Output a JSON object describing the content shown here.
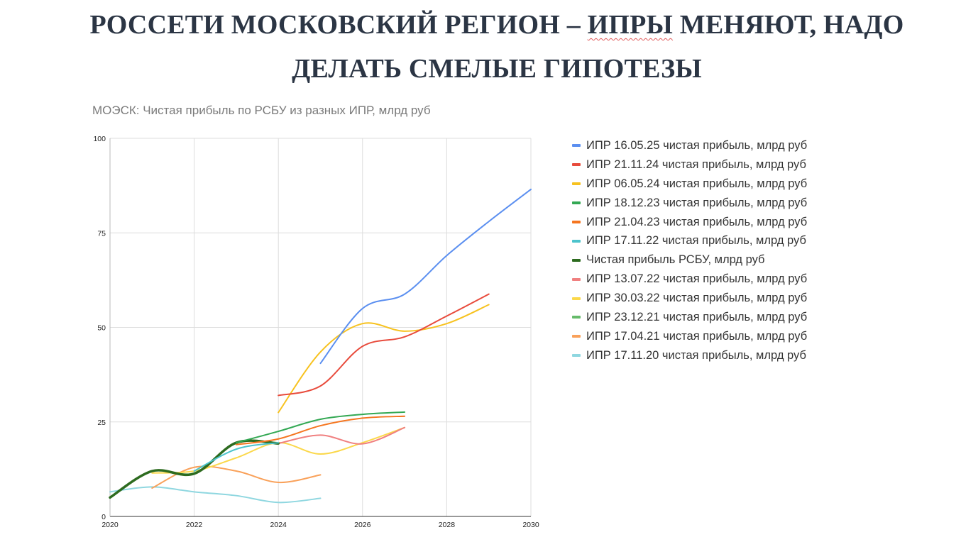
{
  "title_line1_a": "РОССЕТИ МОСКОВСКИЙ РЕГИОН – ",
  "title_line1_b": "ИПРЫ",
  "title_line1_c": " МЕНЯЮТ, НАДО",
  "title_line2": "ДЕЛАТЬ СМЕЛЫЕ ГИПОТЕЗЫ",
  "chart_data": {
    "type": "line",
    "title": "МОЭСК: Чистая прибыль по РСБУ из разных ИПР, млрд руб",
    "xlim": [
      2020,
      2030
    ],
    "ylim": [
      0,
      100
    ],
    "x_ticks": [
      "2020",
      "2022",
      "2024",
      "2026",
      "2028",
      "2030"
    ],
    "y_ticks": [
      "0",
      "25",
      "50",
      "75",
      "100"
    ],
    "grid": true,
    "legend_position": "right",
    "series": [
      {
        "name": "ИПР 16.05.25 чистая прибыль, млрд руб",
        "color": "#5b8ff0",
        "width": 2,
        "x": [
          2025,
          2026,
          2027,
          2028,
          2029,
          2030
        ],
        "y": [
          40.5,
          55,
          58.8,
          69,
          78,
          86.5
        ]
      },
      {
        "name": "ИПР 21.11.24 чистая прибыль, млрд руб",
        "color": "#e84b3c",
        "width": 2,
        "x": [
          2024,
          2025,
          2026,
          2027,
          2028,
          2029
        ],
        "y": [
          32,
          34.5,
          45,
          47.5,
          53,
          58.8
        ]
      },
      {
        "name": "ИПР 06.05.24 чистая прибыль, млрд руб",
        "color": "#f7c21f",
        "width": 2,
        "x": [
          2024,
          2025,
          2026,
          2027,
          2028,
          2029
        ],
        "y": [
          27.5,
          43.5,
          51,
          49,
          51,
          56
        ]
      },
      {
        "name": "ИПР 18.12.23 чистая прибыль, млрд руб",
        "color": "#33a853",
        "width": 2,
        "x": [
          2023,
          2024,
          2025,
          2026,
          2027
        ],
        "y": [
          19.5,
          22.5,
          25.7,
          27,
          27.6
        ]
      },
      {
        "name": "ИПР 21.04.23 чистая прибыль, млрд руб",
        "color": "#f5751f",
        "width": 2,
        "x": [
          2023,
          2024,
          2025,
          2026,
          2027
        ],
        "y": [
          19,
          20.5,
          24,
          26,
          26.5
        ]
      },
      {
        "name": "ИПР 17.11.22 чистая прибыль, млрд руб",
        "color": "#4cc3cc",
        "width": 2,
        "x": [
          2022,
          2023,
          2024
        ],
        "y": [
          12,
          17.8,
          19.5
        ]
      },
      {
        "name": "Чистая прибыль РСБУ, млрд руб",
        "color": "#2d6b1f",
        "width": 3.5,
        "x": [
          2020,
          2021,
          2022,
          2023,
          2024
        ],
        "y": [
          5,
          12,
          11.3,
          19.5,
          19.3
        ]
      },
      {
        "name": "ИПР 13.07.22 чистая прибыль, млрд руб",
        "color": "#f08080",
        "width": 2,
        "x": [
          2024,
          2025,
          2026,
          2027
        ],
        "y": [
          19.3,
          21.5,
          19.2,
          23.5
        ]
      },
      {
        "name": "ИПР 30.03.22 чистая прибыль, млрд руб",
        "color": "#fbd84b",
        "width": 2,
        "x": [
          2021,
          2022,
          2023,
          2024,
          2025,
          2026,
          2027
        ],
        "y": [
          11.5,
          12,
          15.5,
          19.5,
          16.5,
          19.5,
          23.5
        ]
      },
      {
        "name": "ИПР 23.12.21 чистая прибыль, млрд руб",
        "color": "#66bb6a",
        "width": 2,
        "x": [
          2020,
          2021,
          2022,
          2023,
          2024
        ],
        "y": [
          5,
          12,
          11.5,
          19.5,
          19.5
        ]
      },
      {
        "name": "ИПР 17.04.21 чистая прибыль, млрд руб",
        "color": "#f9a15a",
        "width": 2,
        "x": [
          2021,
          2022,
          2023,
          2024,
          2025
        ],
        "y": [
          7.5,
          13,
          12,
          9,
          11
        ]
      },
      {
        "name": "ИПР 17.11.20 чистая прибыль, млрд руб",
        "color": "#8fd7e0",
        "width": 2,
        "x": [
          2020,
          2021,
          2022,
          2023,
          2024,
          2025
        ],
        "y": [
          6.5,
          7.8,
          6.5,
          5.5,
          3.7,
          4.8
        ]
      }
    ]
  }
}
